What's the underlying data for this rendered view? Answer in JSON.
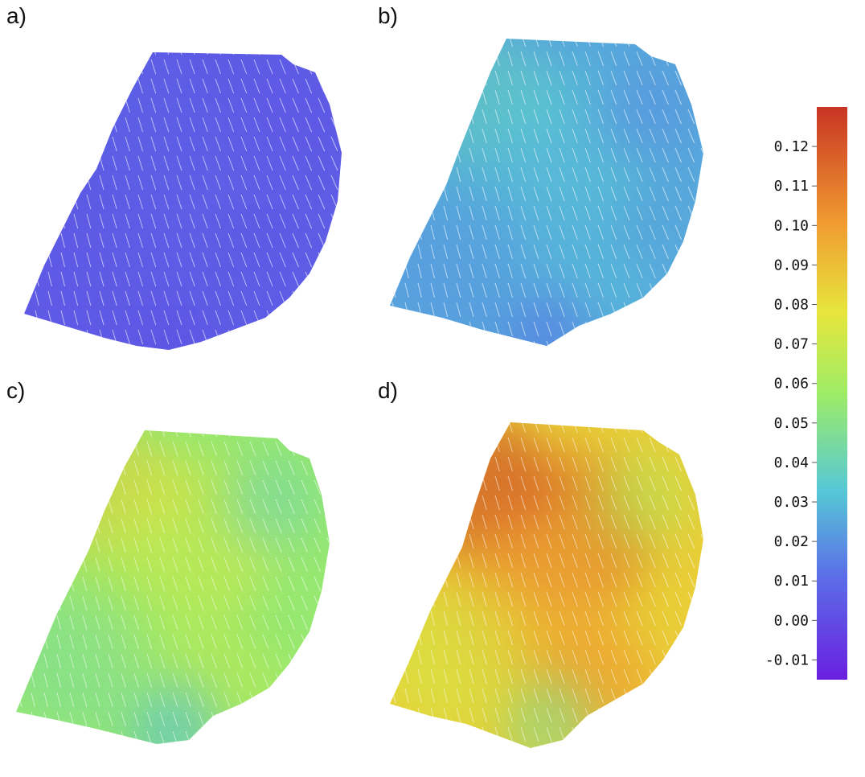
{
  "panels": [
    {
      "id": "a",
      "label": "a)",
      "level": 0.005
    },
    {
      "id": "b",
      "label": "b)",
      "level": 0.025
    },
    {
      "id": "c",
      "label": "c)",
      "level": 0.055
    },
    {
      "id": "d",
      "label": "d)",
      "level": 0.085
    }
  ],
  "colorbar": {
    "min": -0.015,
    "max": 0.13,
    "ticks": [
      "0.12",
      "0.11",
      "0.10",
      "0.09",
      "0.08",
      "0.07",
      "0.06",
      "0.05",
      "0.04",
      "0.03",
      "0.02",
      "0.01",
      "0.00",
      "-0.01"
    ],
    "tick_values": [
      0.12,
      0.11,
      0.1,
      0.09,
      0.08,
      0.07,
      0.06,
      0.05,
      0.04,
      0.03,
      0.02,
      0.01,
      0.0,
      -0.01
    ],
    "colors": {
      "low": "#6a1fe0",
      "blue": "#5b6ee8",
      "cyan": "#56c8d6",
      "green": "#9eec66",
      "yellow": "#e6e63c",
      "orange": "#f09a30",
      "high": "#c83424"
    }
  }
}
